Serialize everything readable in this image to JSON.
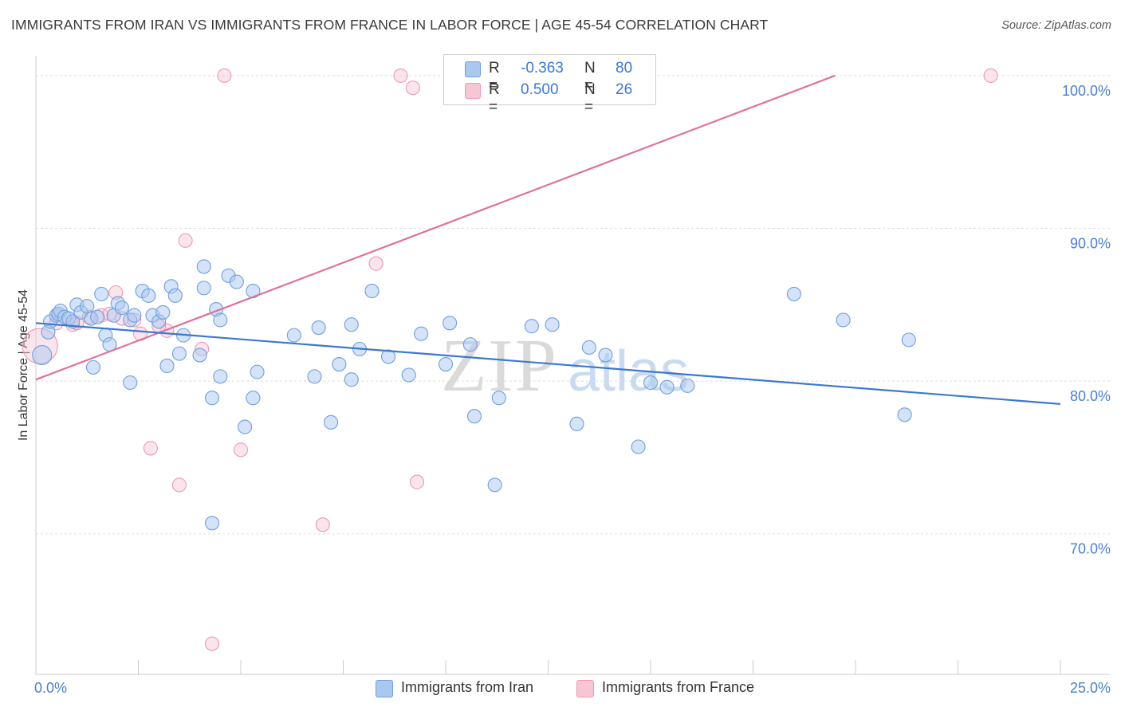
{
  "header": {
    "title": "IMMIGRANTS FROM IRAN VS IMMIGRANTS FROM FRANCE IN LABOR FORCE | AGE 45-54 CORRELATION CHART",
    "source": "Source: ZipAtlas.com"
  },
  "watermark": {
    "zip": "ZIP",
    "atlas": "atlas"
  },
  "stats": {
    "iran": {
      "r_label": "R =",
      "r_value": "-0.363",
      "n_label": "N =",
      "n_value": "80"
    },
    "france": {
      "r_label": "R =",
      "r_value": "0.500",
      "n_label": "N =",
      "n_value": "26"
    }
  },
  "legend": {
    "iran": "Immigrants from Iran",
    "france": "Immigrants from France"
  },
  "colors": {
    "iran_fill": "#a9c7ef",
    "iran_stroke": "#6f9fdf",
    "iran_line": "#3b78d0",
    "france_fill": "#f7c6d5",
    "france_stroke": "#ec9ab2",
    "france_line": "#e0709a",
    "grid": "#dddddd",
    "axis_label": "#4a7fd0"
  },
  "chart_data": {
    "type": "scatter",
    "title": "IMMIGRANTS FROM IRAN VS IMMIGRANTS FROM FRANCE IN LABOR FORCE | AGE 45-54 CORRELATION CHART",
    "xlabel": "",
    "ylabel": "In Labor Force | Age 45-54",
    "xlim": [
      0,
      25
    ],
    "ylim": [
      60.8,
      101.3
    ],
    "x_tick_labels": [
      "0.0%",
      "25.0%"
    ],
    "y_ticks": [
      70,
      80,
      90,
      100
    ],
    "y_tick_labels": [
      "70.0%",
      "80.0%",
      "90.0%",
      "100.0%"
    ],
    "grid": true,
    "legend_position": "bottom",
    "series": [
      {
        "name": "Immigrants from Iran",
        "trend": {
          "x0": 0,
          "y0": 83.8,
          "x1": 25,
          "y1": 78.5
        },
        "points": [
          [
            0.15,
            81.7
          ],
          [
            0.3,
            83.2
          ],
          [
            0.35,
            83.9
          ],
          [
            0.5,
            84.3
          ],
          [
            0.55,
            84.4
          ],
          [
            0.6,
            84.6
          ],
          [
            0.7,
            84.2
          ],
          [
            0.8,
            84.1
          ],
          [
            0.9,
            83.9
          ],
          [
            1.0,
            85.0
          ],
          [
            1.1,
            84.5
          ],
          [
            1.25,
            84.9
          ],
          [
            1.35,
            84.1
          ],
          [
            1.5,
            84.2
          ],
          [
            1.6,
            85.7
          ],
          [
            1.7,
            83.0
          ],
          [
            1.8,
            82.4
          ],
          [
            1.9,
            84.3
          ],
          [
            2.0,
            85.1
          ],
          [
            2.1,
            84.8
          ],
          [
            2.3,
            84.0
          ],
          [
            2.4,
            84.3
          ],
          [
            2.6,
            85.9
          ],
          [
            2.75,
            85.6
          ],
          [
            2.85,
            84.3
          ],
          [
            3.0,
            83.9
          ],
          [
            3.1,
            84.5
          ],
          [
            3.3,
            86.2
          ],
          [
            3.4,
            85.6
          ],
          [
            3.6,
            83.0
          ],
          [
            4.1,
            87.5
          ],
          [
            4.1,
            86.1
          ],
          [
            4.4,
            84.7
          ],
          [
            4.5,
            84.0
          ],
          [
            4.7,
            86.9
          ],
          [
            4.9,
            86.5
          ],
          [
            5.3,
            85.9
          ],
          [
            1.4,
            80.9
          ],
          [
            2.3,
            79.9
          ],
          [
            3.2,
            81.0
          ],
          [
            3.5,
            81.8
          ],
          [
            4.0,
            81.7
          ],
          [
            4.3,
            78.9
          ],
          [
            4.5,
            80.3
          ],
          [
            5.1,
            77.0
          ],
          [
            5.3,
            78.9
          ],
          [
            5.4,
            80.6
          ],
          [
            6.3,
            83.0
          ],
          [
            6.8,
            80.3
          ],
          [
            6.9,
            83.5
          ],
          [
            7.2,
            77.3
          ],
          [
            7.4,
            81.1
          ],
          [
            7.7,
            80.1
          ],
          [
            7.7,
            83.7
          ],
          [
            7.9,
            82.1
          ],
          [
            8.2,
            85.9
          ],
          [
            8.6,
            81.6
          ],
          [
            9.1,
            80.4
          ],
          [
            9.4,
            83.1
          ],
          [
            10.0,
            81.1
          ],
          [
            10.1,
            83.8
          ],
          [
            10.6,
            82.4
          ],
          [
            10.7,
            77.7
          ],
          [
            11.2,
            73.2
          ],
          [
            11.3,
            78.9
          ],
          [
            12.1,
            83.6
          ],
          [
            12.6,
            83.7
          ],
          [
            13.2,
            77.2
          ],
          [
            13.5,
            82.2
          ],
          [
            13.9,
            81.7
          ],
          [
            14.7,
            75.7
          ],
          [
            15.0,
            79.9
          ],
          [
            15.4,
            79.6
          ],
          [
            15.9,
            79.7
          ],
          [
            18.5,
            85.7
          ],
          [
            19.7,
            84.0
          ],
          [
            21.2,
            77.8
          ],
          [
            21.3,
            82.7
          ],
          [
            4.3,
            70.7
          ],
          [
            10.5,
            100.0
          ]
        ]
      },
      {
        "name": "Immigrants from France",
        "trend": {
          "x0": 0,
          "y0": 80.1,
          "x1": 19.5,
          "y1": 100.0
        },
        "points": [
          [
            0.1,
            82.3
          ],
          [
            0.9,
            83.7
          ],
          [
            1.0,
            83.8
          ],
          [
            1.6,
            84.3
          ],
          [
            1.95,
            85.8
          ],
          [
            2.1,
            84.1
          ],
          [
            2.55,
            83.1
          ],
          [
            3.2,
            83.3
          ],
          [
            4.05,
            82.1
          ],
          [
            3.65,
            89.2
          ],
          [
            8.3,
            87.7
          ],
          [
            2.8,
            75.6
          ],
          [
            3.5,
            73.2
          ],
          [
            5.0,
            75.5
          ],
          [
            9.3,
            73.4
          ],
          [
            7.0,
            70.6
          ],
          [
            4.3,
            62.8
          ],
          [
            4.6,
            100.0
          ],
          [
            8.9,
            100.0
          ],
          [
            9.2,
            99.2
          ],
          [
            23.3,
            100.0
          ],
          [
            0.5,
            83.8
          ],
          [
            1.3,
            84.2
          ],
          [
            2.4,
            84.0
          ],
          [
            3.0,
            83.6
          ],
          [
            1.8,
            84.4
          ]
        ]
      }
    ]
  }
}
